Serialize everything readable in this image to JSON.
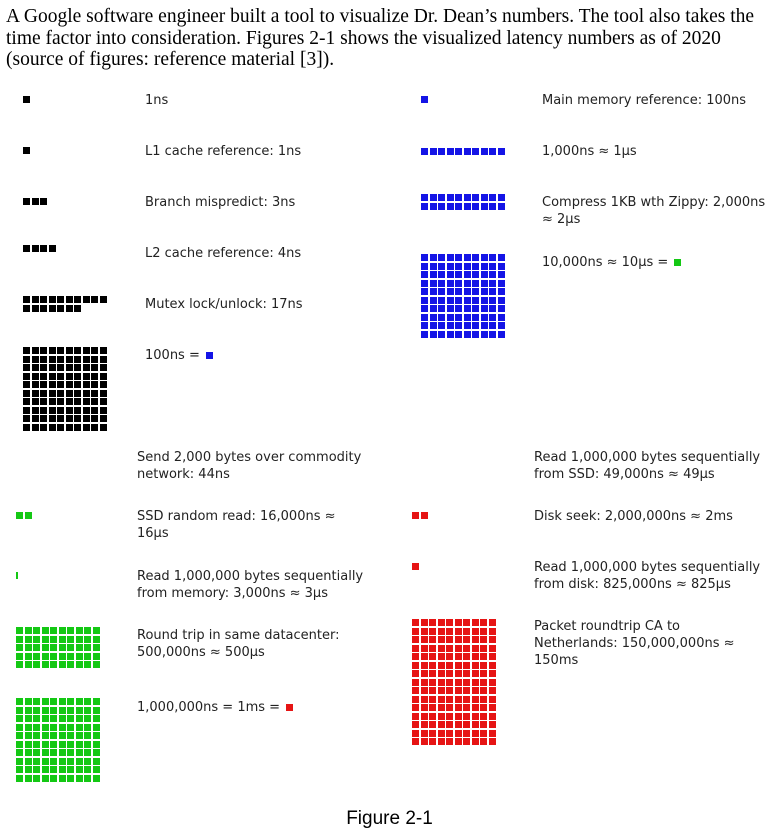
{
  "intro_text": "A Google software engineer built a tool to visualize Dr. Dean’s numbers. The tool also takes the time factor into consideration. Figures 2-1 shows the visualized latency numbers as of 2020 (source of figures: reference material [3]).",
  "colors": {
    "ns": "#000000",
    "hundred_ns": "#1414e6",
    "us": "#14c814",
    "ms": "#e61414"
  },
  "items": [
    {
      "id": "ns1",
      "label": "1ns",
      "units": 1,
      "color_key": "ns"
    },
    {
      "id": "l1",
      "label": "L1 cache reference: 1ns",
      "units": 1,
      "color_key": "ns"
    },
    {
      "id": "branch",
      "label": "Branch mispredict: 3ns",
      "units": 3,
      "color_key": "ns"
    },
    {
      "id": "l2",
      "label": "L2 cache reference: 4ns",
      "units": 4,
      "color_key": "ns"
    },
    {
      "id": "mutex",
      "label": "Mutex lock/unlock: 17ns",
      "units": 17,
      "color_key": "ns"
    },
    {
      "id": "ns100",
      "label": "100ns =",
      "units": 100,
      "color_key": "ns",
      "equals_color_key": "hundred_ns"
    },
    {
      "id": "mainmem",
      "label": "Main memory reference: 100ns",
      "units": 1,
      "color_key": "hundred_ns"
    },
    {
      "id": "us1",
      "label": "1,000ns ≈ 1µs",
      "units": 10,
      "color_key": "hundred_ns"
    },
    {
      "id": "zippy",
      "label_lines": [
        "Compress 1KB wth Zippy: 2,000ns",
        "≈ 2µs"
      ],
      "units": 20,
      "color_key": "hundred_ns"
    },
    {
      "id": "us10",
      "label": "10,000ns ≈ 10µs =",
      "units": 100,
      "color_key": "hundred_ns",
      "equals_color_key": "us"
    },
    {
      "id": "send2k",
      "label_lines": [
        "Send 2,000 bytes over commodity",
        "network: 44ns"
      ],
      "units": 0,
      "color_key": "us"
    },
    {
      "id": "ssdrand",
      "label_lines": [
        "SSD random read: 16,000ns ≈",
        "16µs"
      ],
      "units": 2,
      "color_key": "us"
    },
    {
      "id": "readmem",
      "label_lines": [
        "Read 1,000,000 bytes sequentially",
        "from memory: 3,000ns ≈ 3µs"
      ],
      "units": 0.3,
      "color_key": "us"
    },
    {
      "id": "roundtripdc",
      "label_lines": [
        "Round trip in same datacenter:",
        "500,000ns ≈ 500µs"
      ],
      "units": 50,
      "color_key": "us"
    },
    {
      "id": "ms1",
      "label": "1,000,000ns = 1ms =",
      "units": 100,
      "color_key": "us",
      "equals_color_key": "ms"
    },
    {
      "id": "readssd",
      "label_lines": [
        "Read 1,000,000 bytes sequentially",
        "from SSD: 49,000ns ≈ 49µs"
      ],
      "units": 0,
      "color_key": "ms"
    },
    {
      "id": "diskseek",
      "label": "Disk seek: 2,000,000ns ≈ 2ms",
      "units": 2,
      "color_key": "ms"
    },
    {
      "id": "readdisk",
      "label_lines": [
        "Read 1,000,000 bytes sequentially",
        "from disk: 825,000ns ≈ 825µs"
      ],
      "units": 1,
      "color_key": "ms"
    },
    {
      "id": "packet",
      "label_lines": [
        "Packet roundtrip CA to",
        "Netherlands: 150,000,000ns ≈",
        "150ms"
      ],
      "units": 150,
      "color_key": "ms"
    }
  ],
  "caption": "Figure 2-1"
}
